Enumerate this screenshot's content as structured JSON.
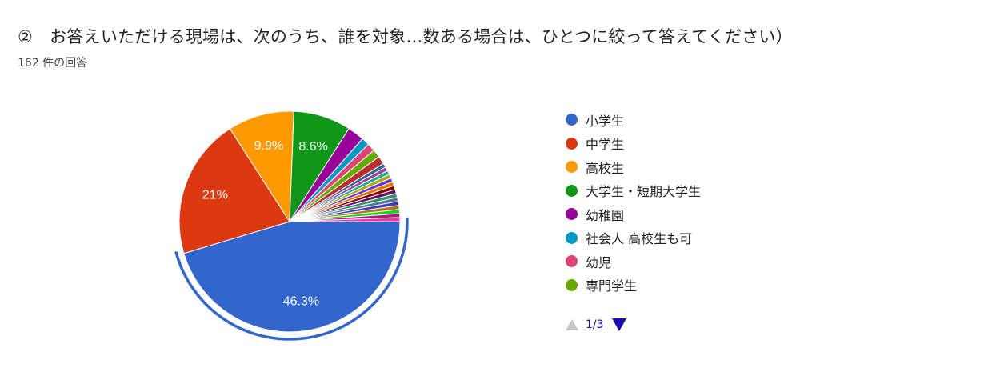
{
  "header": {
    "title": "②　お答えいただける現場は、次のうち、誰を対象…数ある場合は、ひとつに絞って答えてください）",
    "response_count": "162 件の回答"
  },
  "legend": {
    "items": [
      {
        "label": "小学生",
        "color": "#3366cc"
      },
      {
        "label": "中学生",
        "color": "#dc3912"
      },
      {
        "label": "高校生",
        "color": "#ff9900"
      },
      {
        "label": "大学生・短期大学生",
        "color": "#109618"
      },
      {
        "label": "幼稚園",
        "color": "#990099"
      },
      {
        "label": "社会人 高校生も可",
        "color": "#0099c6"
      },
      {
        "label": "幼児",
        "color": "#dd4477"
      },
      {
        "label": "専門学生",
        "color": "#66aa00"
      }
    ],
    "pager": {
      "page": "1/3",
      "prev_icon": "triangle-up-icon",
      "next_icon": "triangle-down-icon"
    }
  },
  "chart_data": {
    "type": "pie",
    "highlighted": "小学生",
    "slices": [
      {
        "label": "小学生",
        "value": 46.3,
        "display": "46.3%",
        "color": "#3366cc"
      },
      {
        "label": "中学生",
        "value": 21,
        "display": "21%",
        "color": "#dc3912"
      },
      {
        "label": "高校生",
        "value": 9.9,
        "display": "9.9%",
        "color": "#ff9900"
      },
      {
        "label": "大学生・短期大学生",
        "value": 8.6,
        "display": "8.6%",
        "color": "#109618"
      },
      {
        "label": "幼稚園",
        "value": 2.5,
        "display": "",
        "color": "#990099"
      },
      {
        "label": "社会人 高校生も可",
        "value": 1.2,
        "display": "",
        "color": "#0099c6"
      },
      {
        "label": "幼児",
        "value": 1.2,
        "display": "",
        "color": "#dd4477"
      },
      {
        "label": "専門学生",
        "value": 1.2,
        "display": "",
        "color": "#66aa00"
      },
      {
        "label": "",
        "value": 1.2,
        "display": "",
        "color": "#b82e2e"
      },
      {
        "label": "",
        "value": 0.6,
        "display": "",
        "color": "#316395"
      },
      {
        "label": "",
        "value": 0.6,
        "display": "",
        "color": "#994499"
      },
      {
        "label": "",
        "value": 0.6,
        "display": "",
        "color": "#22aa99"
      },
      {
        "label": "",
        "value": 0.6,
        "display": "",
        "color": "#aaaa11"
      },
      {
        "label": "",
        "value": 0.6,
        "display": "",
        "color": "#6633cc"
      },
      {
        "label": "",
        "value": 0.6,
        "display": "",
        "color": "#e67300"
      },
      {
        "label": "",
        "value": 0.6,
        "display": "",
        "color": "#8b0707"
      },
      {
        "label": "",
        "value": 0.6,
        "display": "",
        "color": "#651067"
      },
      {
        "label": "",
        "value": 0.6,
        "display": "",
        "color": "#329262"
      },
      {
        "label": "",
        "value": 0.6,
        "display": "",
        "color": "#5574a6"
      },
      {
        "label": "",
        "value": 0.6,
        "display": "",
        "color": "#3b3eac"
      },
      {
        "label": "",
        "value": 0.6,
        "display": "",
        "color": "#b77322"
      },
      {
        "label": "",
        "value": 0.6,
        "display": "",
        "color": "#16d620"
      },
      {
        "label": "",
        "value": 0.6,
        "display": "",
        "color": "#b91383"
      },
      {
        "label": "",
        "value": 0.6,
        "display": "",
        "color": "#f4359e"
      }
    ]
  }
}
